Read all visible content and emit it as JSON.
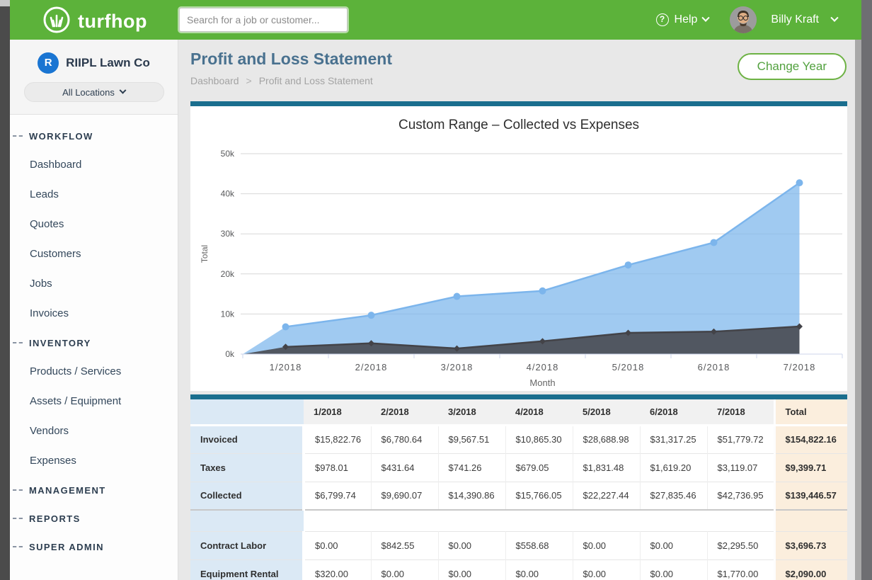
{
  "topbar": {
    "brand": "turfhop",
    "search_placeholder": "Search for a job or customer...",
    "help_label": "Help",
    "user_name": "Billy Kraft"
  },
  "sidebar": {
    "company": "RIIPL Lawn Co",
    "company_initial": "R",
    "location_selector": "All Locations",
    "sections": [
      {
        "label": "WORKFLOW",
        "items": [
          "Dashboard",
          "Leads",
          "Quotes",
          "Customers",
          "Jobs",
          "Invoices"
        ]
      },
      {
        "label": "INVENTORY",
        "items": [
          "Products / Services",
          "Assets / Equipment",
          "Vendors",
          "Expenses"
        ]
      },
      {
        "label": "MANAGEMENT",
        "items": []
      },
      {
        "label": "REPORTS",
        "items": []
      },
      {
        "label": "SUPER ADMIN",
        "items": []
      }
    ]
  },
  "page": {
    "title": "Profit and Loss Statement",
    "breadcrumb": [
      "Dashboard",
      "Profit and Loss Statement"
    ],
    "change_year_label": "Change Year"
  },
  "chart_data": {
    "type": "area",
    "title": "Custom Range – Collected vs Expenses",
    "xlabel": "Month",
    "ylabel": "Total",
    "categories": [
      "1/2018",
      "2/2018",
      "3/2018",
      "4/2018",
      "5/2018",
      "6/2018",
      "7/2018"
    ],
    "series": [
      {
        "name": "Collected",
        "color": "#7cb5ec",
        "marker": "circle",
        "values": [
          6799.74,
          9690.07,
          14390.86,
          15766.05,
          22227.44,
          27835.46,
          42736.95
        ]
      },
      {
        "name": "Expenses",
        "color": "#434348",
        "marker": "diamond",
        "values": [
          1800,
          2700,
          1400,
          3200,
          5300,
          5600,
          6900
        ]
      }
    ],
    "ylim": [
      0,
      50000
    ],
    "ytick_labels": [
      "0k",
      "10k",
      "20k",
      "30k",
      "40k",
      "50k"
    ],
    "grid": true,
    "legend": "none"
  },
  "table": {
    "columns": [
      "",
      "1/2018",
      "2/2018",
      "3/2018",
      "4/2018",
      "5/2018",
      "6/2018",
      "7/2018",
      "Total"
    ],
    "rows": [
      {
        "label": "Invoiced",
        "values": [
          "$15,822.76",
          "$6,780.64",
          "$9,567.51",
          "$10,865.30",
          "$28,688.98",
          "$31,317.25",
          "$51,779.72",
          "$154,822.16"
        ]
      },
      {
        "label": "Taxes",
        "values": [
          "$978.01",
          "$431.64",
          "$741.26",
          "$679.05",
          "$1,831.48",
          "$1,619.20",
          "$3,119.07",
          "$9,399.71"
        ]
      },
      {
        "label": "Collected",
        "values": [
          "$6,799.74",
          "$9,690.07",
          "$14,390.86",
          "$15,766.05",
          "$22,227.44",
          "$27,835.46",
          "$42,736.95",
          "$139,446.57"
        ]
      },
      {
        "label": "",
        "spacer": true,
        "values": [
          "",
          "",
          "",
          "",
          "",
          "",
          "",
          ""
        ]
      },
      {
        "label": "Contract Labor",
        "values": [
          "$0.00",
          "$842.55",
          "$0.00",
          "$558.68",
          "$0.00",
          "$0.00",
          "$2,295.50",
          "$3,696.73"
        ]
      },
      {
        "label": "Equipment Rental",
        "values": [
          "$320.00",
          "$0.00",
          "$0.00",
          "$0.00",
          "$0.00",
          "$0.00",
          "$1,770.00",
          "$2,090.00"
        ]
      }
    ]
  },
  "colors": {
    "topbar_green": "#5cb23a",
    "accent_teal": "#1a6e8e",
    "button_green": "#6db244",
    "company_blue": "#1a75d2",
    "series_collected_blue": "#7cb5ec",
    "series_expenses_dark": "#434348",
    "label_col_bg": "#dbe9f5",
    "total_col_bg": "#fbeedd"
  }
}
